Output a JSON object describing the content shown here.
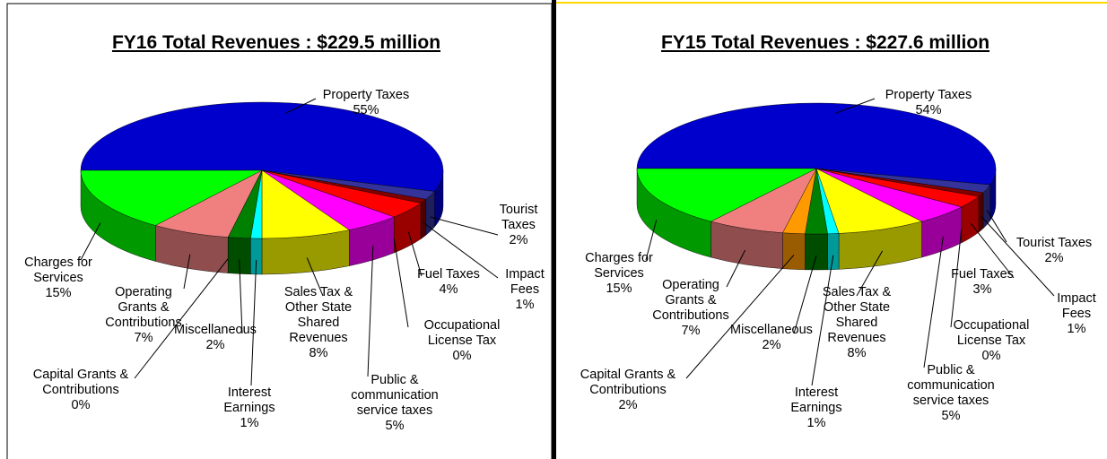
{
  "chart_data": [
    {
      "type": "pie3d",
      "title": "FY16 Total Revenues : $229.5 million",
      "categories": [
        "Property Taxes",
        "Tourist Taxes",
        "Impact Fees",
        "Fuel Taxes",
        "Occupational License Tax",
        "Public & communication service taxes",
        "Sales Tax & Other State Shared Revenues",
        "Interest Earnings",
        "Miscellaneous",
        "Capital Grants & Contributions",
        "Operating Grants & Contributions",
        "Charges for Services"
      ],
      "values": [
        55,
        2,
        1,
        4,
        0,
        5,
        8,
        1,
        2,
        0,
        7,
        15
      ],
      "value_labels": [
        "55%",
        "2%",
        "1%",
        "4%",
        "0%",
        "5%",
        "8%",
        "1%",
        "2%",
        "0%",
        "7%",
        "15%"
      ],
      "colors": [
        "#0000cc",
        "#333399",
        "#800000",
        "#ff0000",
        "#c0c0c0",
        "#ff00ff",
        "#ffff00",
        "#00ffff",
        "#008000",
        "#ff9900",
        "#f08080",
        "#00ff00"
      ]
    },
    {
      "type": "pie3d",
      "title": "FY15 Total Revenues : $227.6 million",
      "categories": [
        "Property Taxes",
        "Tourist Taxes",
        "Impact Fees",
        "Fuel Taxes",
        "Occupational License Tax",
        "Public & communication service taxes",
        "Sales Tax & Other State Shared Revenues",
        "Interest Earnings",
        "Miscellaneous",
        "Capital Grants & Contributions",
        "Operating Grants & Contributions",
        "Charges for Services"
      ],
      "values": [
        54,
        2,
        1,
        3,
        0,
        5,
        8,
        1,
        2,
        2,
        7,
        15
      ],
      "value_labels": [
        "54%",
        "2%",
        "1%",
        "3%",
        "0%",
        "5%",
        "8%",
        "1%",
        "2%",
        "2%",
        "7%",
        "15%"
      ],
      "colors": [
        "#0000cc",
        "#333399",
        "#800000",
        "#ff0000",
        "#c0c0c0",
        "#ff00ff",
        "#ffff00",
        "#00ffff",
        "#008000",
        "#ff9900",
        "#f08080",
        "#00ff00"
      ]
    }
  ]
}
